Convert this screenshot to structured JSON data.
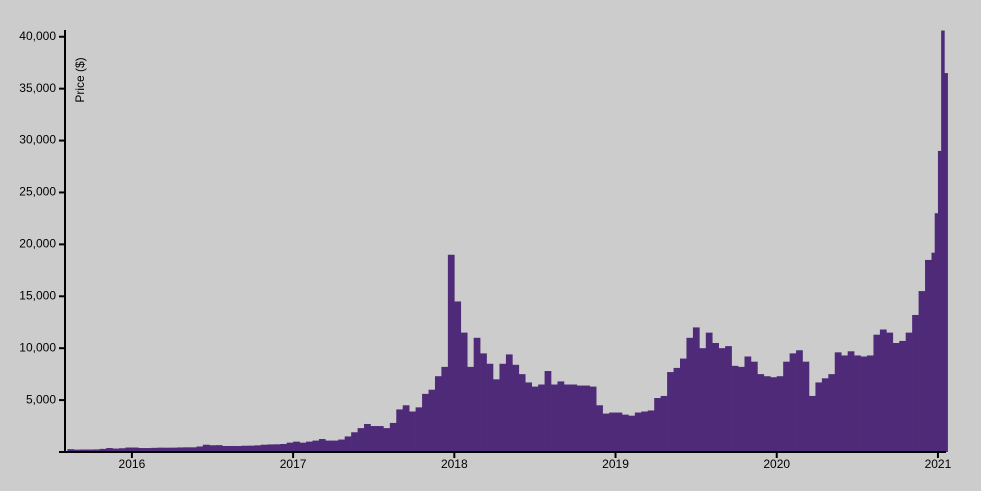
{
  "chart_data": {
    "type": "bar",
    "y_label": "Price ($)",
    "color": "#4e2a78",
    "x": [
      2015.6,
      2015.64,
      2015.68,
      2015.72,
      2015.76,
      2015.8,
      2015.84,
      2015.88,
      2015.92,
      2015.96,
      2016,
      2016.04,
      2016.08,
      2016.12,
      2016.16,
      2016.2,
      2016.24,
      2016.28,
      2016.32,
      2016.36,
      2016.4,
      2016.44,
      2016.48,
      2016.52,
      2016.56,
      2016.6,
      2016.64,
      2016.68,
      2016.72,
      2016.76,
      2016.8,
      2016.84,
      2016.88,
      2016.92,
      2016.96,
      2017,
      2017.04,
      2017.08,
      2017.12,
      2017.16,
      2017.2,
      2017.24,
      2017.28,
      2017.32,
      2017.36,
      2017.4,
      2017.44,
      2017.48,
      2017.52,
      2017.56,
      2017.6,
      2017.64,
      2017.68,
      2017.72,
      2017.76,
      2017.8,
      2017.84,
      2017.88,
      2017.92,
      2017.96,
      2018,
      2018.04,
      2018.08,
      2018.12,
      2018.16,
      2018.2,
      2018.24,
      2018.28,
      2018.32,
      2018.36,
      2018.4,
      2018.44,
      2018.48,
      2018.52,
      2018.56,
      2018.6,
      2018.64,
      2018.68,
      2018.72,
      2018.76,
      2018.8,
      2018.84,
      2018.88,
      2018.92,
      2018.96,
      2019,
      2019.04,
      2019.08,
      2019.12,
      2019.16,
      2019.2,
      2019.24,
      2019.28,
      2019.32,
      2019.36,
      2019.4,
      2019.44,
      2019.48,
      2019.52,
      2019.56,
      2019.6,
      2019.64,
      2019.68,
      2019.72,
      2019.76,
      2019.8,
      2019.84,
      2019.88,
      2019.92,
      2019.96,
      2020,
      2020.04,
      2020.08,
      2020.12,
      2020.16,
      2020.2,
      2020.24,
      2020.28,
      2020.32,
      2020.36,
      2020.4,
      2020.44,
      2020.48,
      2020.52,
      2020.56,
      2020.6,
      2020.64,
      2020.68,
      2020.72,
      2020.76,
      2020.8,
      2020.84,
      2020.88,
      2020.92,
      2020.96,
      2020.98,
      2021,
      2021.02,
      2021.04
    ],
    "values": [
      270,
      230,
      240,
      240,
      250,
      300,
      380,
      330,
      360,
      430,
      430,
      380,
      380,
      400,
      420,
      415,
      420,
      440,
      450,
      450,
      530,
      700,
      650,
      660,
      580,
      580,
      575,
      605,
      610,
      640,
      700,
      730,
      740,
      770,
      900,
      1000,
      900,
      1000,
      1100,
      1250,
      1100,
      1100,
      1200,
      1500,
      1900,
      2300,
      2700,
      2500,
      2500,
      2300,
      2800,
      4100,
      4500,
      3900,
      4300,
      5600,
      6000,
      7300,
      8200,
      19000,
      14500,
      11500,
      8200,
      11000,
      9500,
      8500,
      7000,
      8500,
      9400,
      8400,
      7500,
      6700,
      6300,
      6500,
      7800,
      6500,
      6800,
      6500,
      6500,
      6400,
      6400,
      6300,
      4500,
      3700,
      3800,
      3800,
      3600,
      3500,
      3800,
      3900,
      4000,
      5200,
      5400,
      7700,
      8100,
      9000,
      11000,
      12000,
      10000,
      11500,
      10500,
      10000,
      10200,
      8300,
      8200,
      9200,
      8700,
      7500,
      7300,
      7200,
      7300,
      8700,
      9500,
      9800,
      8700,
      5400,
      6700,
      7100,
      7500,
      9600,
      9300,
      9700,
      9300,
      9200,
      9300,
      11300,
      11800,
      11500,
      10500,
      10700,
      11500,
      13200,
      15500,
      18500,
      19200,
      23000,
      29000,
      40600,
      36500
    ],
    "xlim": [
      2015.585,
      2021.05
    ],
    "xticks": [
      2016,
      2017,
      2018,
      2019,
      2020,
      2021
    ],
    "ylim": [
      0,
      40650
    ],
    "yticks": [
      {
        "value": 5000,
        "label": "5,000"
      },
      {
        "value": 10000,
        "label": "10,000"
      },
      {
        "value": 15000,
        "label": "15,000"
      },
      {
        "value": 20000,
        "label": "20,000"
      },
      {
        "value": 25000,
        "label": "25,000"
      },
      {
        "value": 30000,
        "label": "30,000"
      },
      {
        "value": 35000,
        "label": "35,000"
      },
      {
        "value": 40000,
        "label": "40,000"
      }
    ]
  }
}
